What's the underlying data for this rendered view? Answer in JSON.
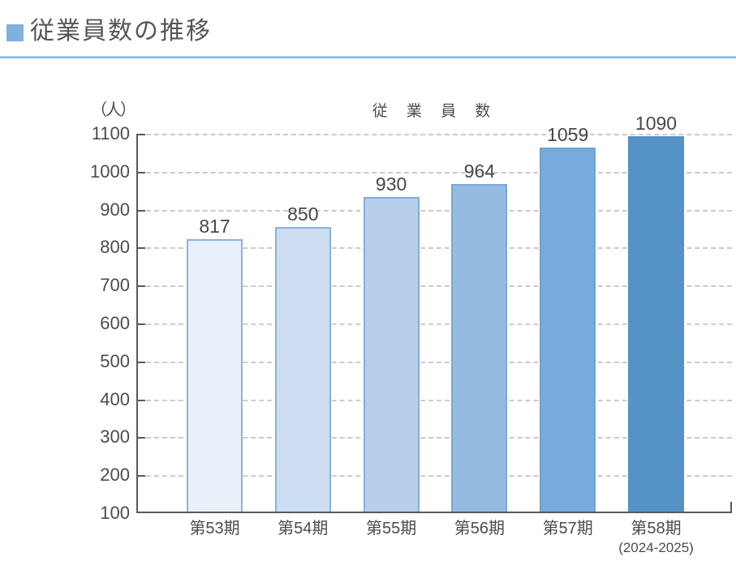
{
  "page": {
    "title": "従業員数の推移"
  },
  "chart_data": {
    "type": "bar",
    "title": "従 業 員 数",
    "unit_label": "（人）",
    "categories": [
      "第53期",
      "第54期",
      "第55期",
      "第56期",
      "第57期",
      "第58期"
    ],
    "category_sublabels": [
      "",
      "",
      "",
      "",
      "",
      "(2024-2025)"
    ],
    "values": [
      817,
      850,
      930,
      964,
      1059,
      1090
    ],
    "ylim": [
      100,
      1100
    ],
    "yticks": [
      100,
      200,
      300,
      400,
      500,
      600,
      700,
      800,
      900,
      1000,
      1100
    ],
    "grid": "horizontal-dashed",
    "legend": "none",
    "bar_fill_colors": [
      "#e9f0f9",
      "#cdddf2",
      "#b8cfeb",
      "#95bce0",
      "#76abdc",
      "#5593c6"
    ],
    "bar_border_colors": [
      "#8ab4e2",
      "#87b1df",
      "#83add9",
      "#7ca7d4",
      "#6fa3d2",
      "#5491c2"
    ],
    "accent_color": "#7fb0de",
    "axis_color": "#595959",
    "gridline_color": "#cbcbcb",
    "text_color": "#4c4c4c"
  }
}
